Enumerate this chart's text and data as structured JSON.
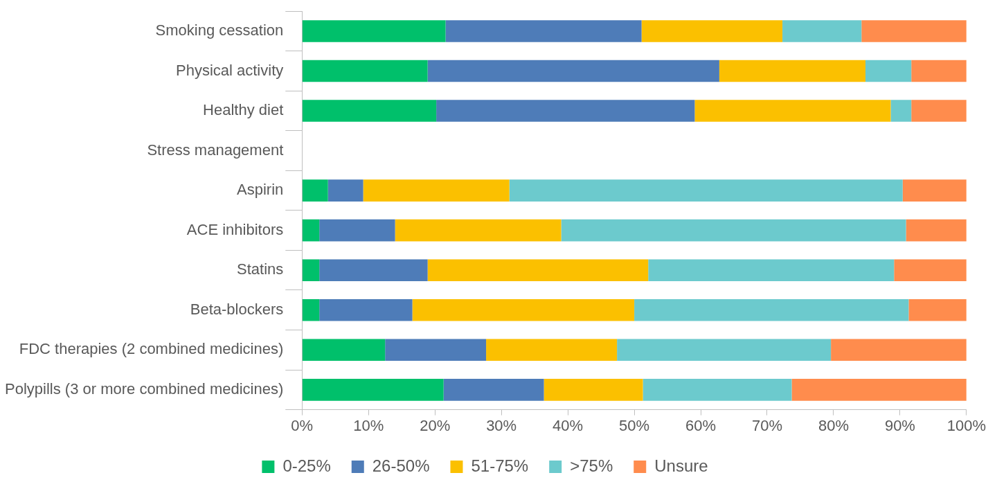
{
  "chart_data": {
    "type": "bar",
    "orientation": "horizontal",
    "stacked": true,
    "categories": [
      "Smoking cessation",
      "Physical activity",
      "Healthy diet",
      "Stress management",
      "Aspirin",
      "ACE inhibitors",
      "Statins",
      "Beta-blockers",
      "FDC therapies (2 combined medicines)",
      "Polypills (3 or more combined medicines)"
    ],
    "series": [
      {
        "name": "0-25%",
        "color": "#00c06b",
        "values": [
          21.6,
          18.9,
          20.2,
          null,
          3.9,
          2.6,
          2.6,
          2.6,
          12.5,
          21.3
        ]
      },
      {
        "name": "26-50%",
        "color": "#4e7cb8",
        "values": [
          29.5,
          43.9,
          38.9,
          null,
          5.3,
          11.4,
          16.3,
          14.0,
          15.2,
          15.1
        ]
      },
      {
        "name": "51-75%",
        "color": "#fbc000",
        "values": [
          21.2,
          22.0,
          29.5,
          null,
          22.0,
          25.0,
          33.2,
          33.4,
          19.7,
          14.9
        ]
      },
      {
        "name": ">75%",
        "color": "#6ccacd",
        "values": [
          11.9,
          6.9,
          3.1,
          null,
          59.2,
          51.9,
          37.0,
          41.3,
          32.2,
          22.4
        ]
      },
      {
        "name": "Unsure",
        "color": "#ff8c4d",
        "values": [
          15.8,
          8.3,
          8.3,
          null,
          9.6,
          9.1,
          10.9,
          8.7,
          20.4,
          26.3
        ]
      }
    ],
    "xlim": [
      0,
      100
    ],
    "xticks": [
      {
        "value": 0,
        "label": "0%"
      },
      {
        "value": 10,
        "label": "10%"
      },
      {
        "value": 20,
        "label": "20%"
      },
      {
        "value": 30,
        "label": "30%"
      },
      {
        "value": 40,
        "label": "40%"
      },
      {
        "value": 50,
        "label": "50%"
      },
      {
        "value": 60,
        "label": "60%"
      },
      {
        "value": 70,
        "label": "70%"
      },
      {
        "value": 80,
        "label": "80%"
      },
      {
        "value": 90,
        "label": "90%"
      },
      {
        "value": 100,
        "label": "100%"
      }
    ],
    "grid": false,
    "legend": "bottom"
  }
}
